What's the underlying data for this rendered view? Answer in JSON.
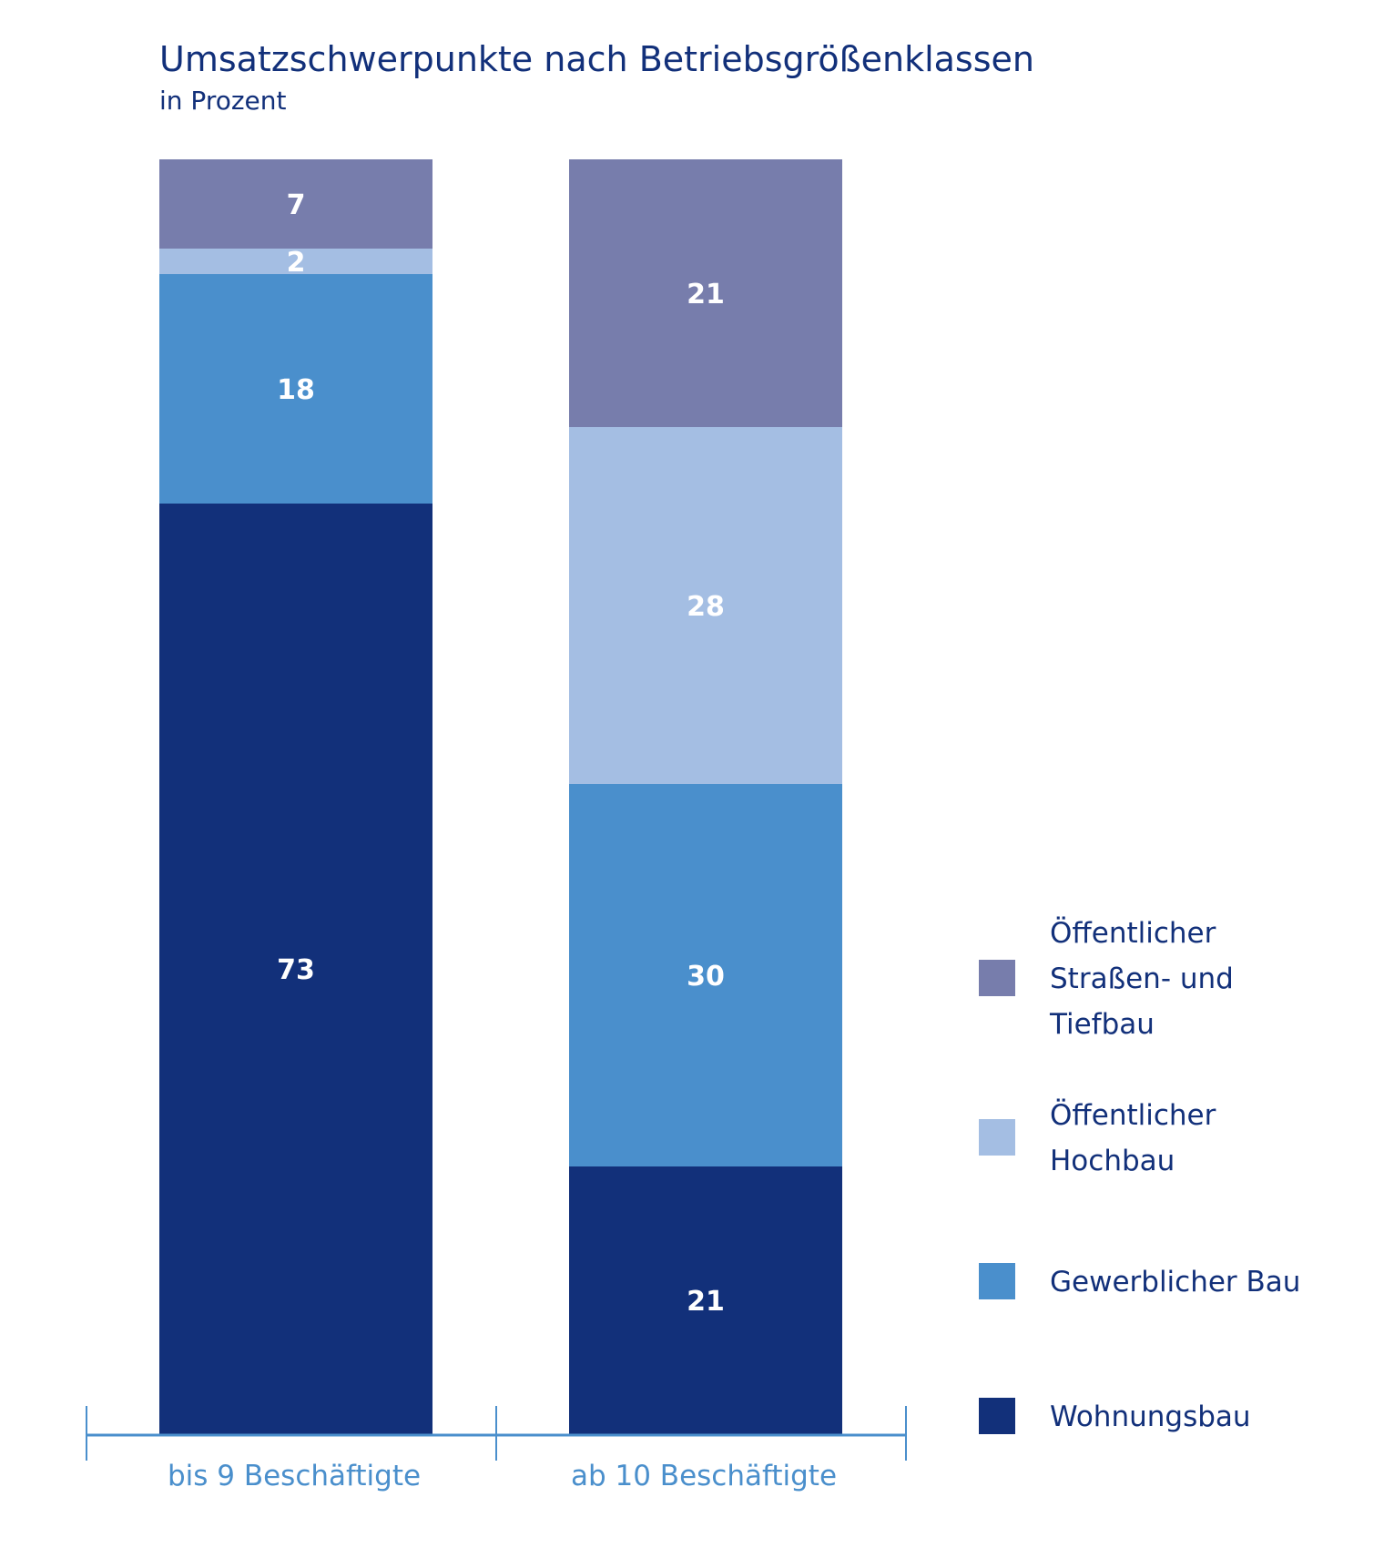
{
  "chart_data": {
    "type": "bar",
    "stacked": true,
    "title": "Umsatzschwerpunkte nach Betriebsgrößenklassen",
    "subtitle": "in Prozent",
    "categories": [
      "bis 9 Beschäftigte",
      "ab 10 Beschäftigte"
    ],
    "series": [
      {
        "name": "Wohnungsbau",
        "values": [
          73,
          21
        ],
        "color": "#12307a"
      },
      {
        "name": "Gewerblicher Bau",
        "values": [
          18,
          30
        ],
        "color": "#4a8fcc"
      },
      {
        "name": "Öffentlicher Hochbau",
        "values": [
          2,
          28
        ],
        "color": "#a4bee3"
      },
      {
        "name": "Öffentlicher Straßen- und Tiefbau",
        "values": [
          7,
          21
        ],
        "color": "#777dac"
      }
    ],
    "legend": [
      {
        "lines": [
          "Öffentlicher",
          "Straßen- und",
          "Tiefbau"
        ],
        "color": "#777dac"
      },
      {
        "lines": [
          "Öffentlicher",
          "Hochbau"
        ],
        "color": "#a4bee3"
      },
      {
        "lines": [
          "Gewerblicher Bau"
        ],
        "color": "#4a8fcc"
      },
      {
        "lines": [
          "Wohnungsbau"
        ],
        "color": "#12307a"
      }
    ],
    "ylim": [
      0,
      100
    ],
    "axis_color": "#4a8fcc",
    "legend_position": "right"
  }
}
